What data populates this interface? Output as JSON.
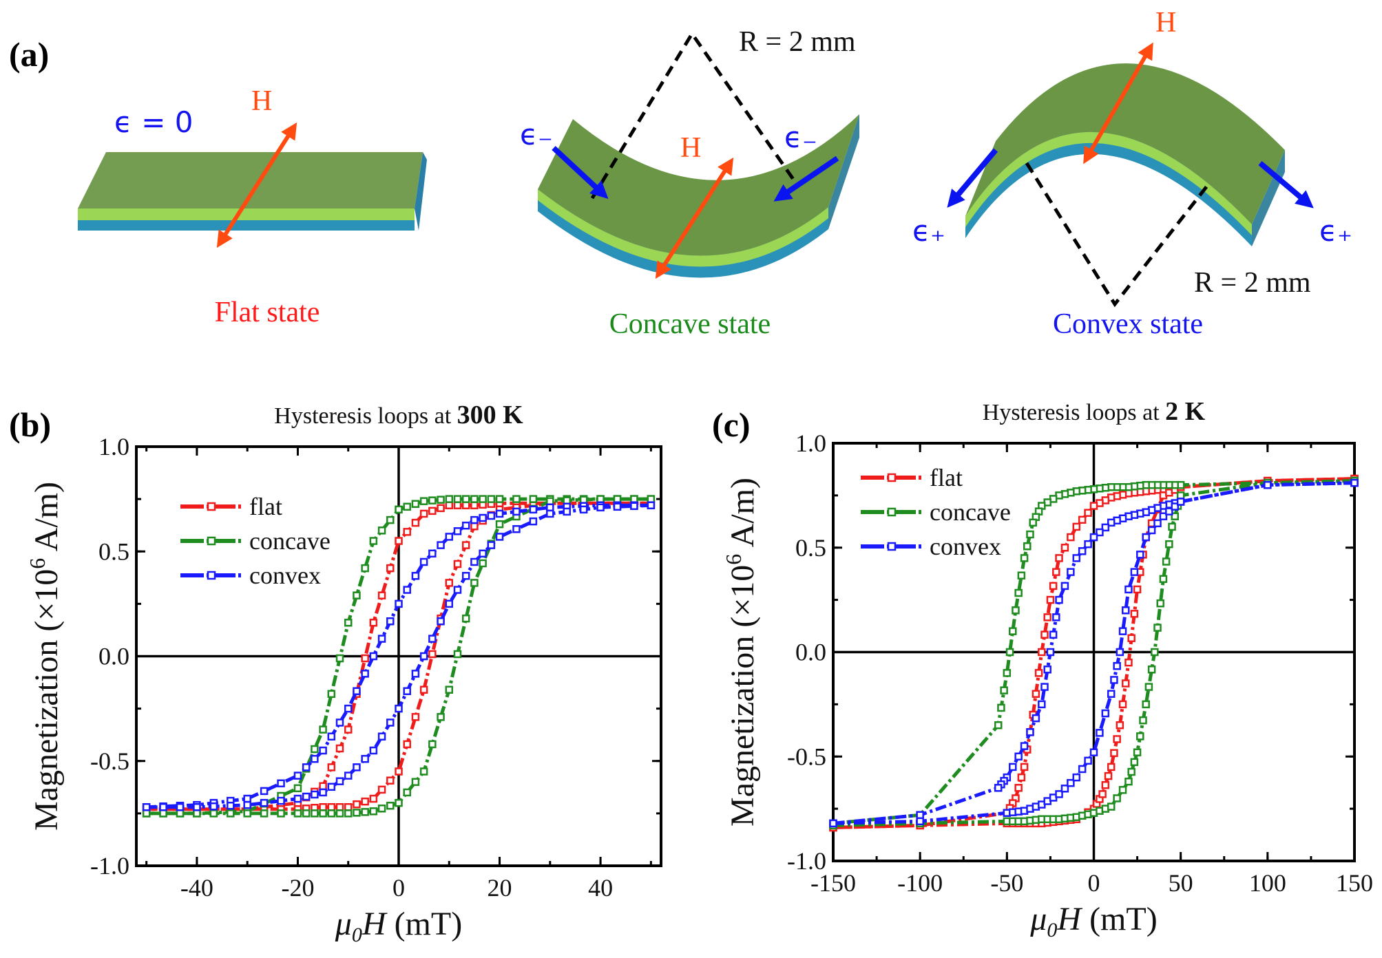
{
  "panel_a": {
    "label": "(a)",
    "colors": {
      "top_surface": "#6f9a48",
      "light_layer": "#9bd655",
      "blue_layer": "#2a92b8",
      "field_arrow": "#ff4a10",
      "strain_arrow": "#0a14f0"
    },
    "flat": {
      "strain_label": "ϵ = 0",
      "field_label": "H",
      "state_label": "Flat state",
      "state_color": "#ff1a1a"
    },
    "concave": {
      "strain_left": "ϵ₋",
      "strain_right": "ϵ₋",
      "field_label": "H",
      "radius_label": "R = 2 mm",
      "state_label": "Concave state",
      "state_color": "#1a8a1a"
    },
    "convex": {
      "strain_left": "ϵ₊",
      "strain_right": "ϵ₊",
      "field_label": "H",
      "radius_label": "R = 2 mm",
      "state_label": "Convex state",
      "state_color": "#1414f0"
    }
  },
  "chart_data": [
    {
      "panel_label": "(b)",
      "type": "line",
      "title_prefix": "Hysteresis loops at ",
      "title_bold": "300 K",
      "xlabel": {
        "mu": "μ",
        "sub": "0",
        "sym": "H",
        "unit": " (mT)"
      },
      "ylabel": {
        "main": "Magnetization (×10",
        "sup": "6",
        "unit": " A/m)"
      },
      "xlim": [
        -52,
        52
      ],
      "ylim": [
        -1.0,
        1.0
      ],
      "xticks": [
        {
          "v": -40,
          "label": "-40"
        },
        {
          "v": -20,
          "label": "-20"
        },
        {
          "v": 0,
          "label": "0"
        },
        {
          "v": 20,
          "label": "20"
        },
        {
          "v": 40,
          "label": "40"
        }
      ],
      "xminor_step": 10,
      "yticks": [
        {
          "v": -1.0,
          "label": "-1.0"
        },
        {
          "v": -0.5,
          "label": "-0.5"
        },
        {
          "v": 0.0,
          "label": "0.0"
        },
        {
          "v": 0.5,
          "label": "0.5"
        },
        {
          "v": 1.0,
          "label": "1.0"
        }
      ],
      "yminor_step": 0.25,
      "zero_lines": true,
      "legend_placement": "top-left",
      "series": [
        {
          "name": "flat",
          "color": "#f01c1c",
          "descending": [
            [
              50,
              0.73
            ],
            [
              40,
              0.73
            ],
            [
              30,
              0.73
            ],
            [
              20,
              0.73
            ],
            [
              15,
              0.72
            ],
            [
              10,
              0.72
            ],
            [
              5,
              0.68
            ],
            [
              0,
              0.55
            ],
            [
              -5,
              0.16
            ],
            [
              -10,
              -0.35
            ],
            [
              -15,
              -0.62
            ],
            [
              -20,
              -0.7
            ],
            [
              -30,
              -0.73
            ],
            [
              -40,
              -0.73
            ],
            [
              -50,
              -0.73
            ]
          ],
          "ascending": [
            [
              -50,
              -0.73
            ],
            [
              -40,
              -0.73
            ],
            [
              -30,
              -0.73
            ],
            [
              -20,
              -0.73
            ],
            [
              -15,
              -0.72
            ],
            [
              -10,
              -0.72
            ],
            [
              -5,
              -0.68
            ],
            [
              0,
              -0.55
            ],
            [
              5,
              -0.16
            ],
            [
              10,
              0.35
            ],
            [
              15,
              0.62
            ],
            [
              20,
              0.7
            ],
            [
              30,
              0.73
            ],
            [
              40,
              0.73
            ],
            [
              50,
              0.73
            ]
          ]
        },
        {
          "name": "concave",
          "color": "#1e8c1e",
          "descending": [
            [
              50,
              0.75
            ],
            [
              40,
              0.75
            ],
            [
              30,
              0.75
            ],
            [
              20,
              0.75
            ],
            [
              15,
              0.75
            ],
            [
              10,
              0.75
            ],
            [
              5,
              0.74
            ],
            [
              0,
              0.7
            ],
            [
              -5,
              0.55
            ],
            [
              -10,
              0.16
            ],
            [
              -15,
              -0.35
            ],
            [
              -20,
              -0.63
            ],
            [
              -30,
              -0.74
            ],
            [
              -40,
              -0.75
            ],
            [
              -50,
              -0.75
            ]
          ],
          "ascending": [
            [
              -50,
              -0.75
            ],
            [
              -40,
              -0.75
            ],
            [
              -30,
              -0.75
            ],
            [
              -20,
              -0.75
            ],
            [
              -15,
              -0.75
            ],
            [
              -10,
              -0.75
            ],
            [
              -5,
              -0.74
            ],
            [
              0,
              -0.7
            ],
            [
              5,
              -0.55
            ],
            [
              10,
              -0.16
            ],
            [
              15,
              0.35
            ],
            [
              20,
              0.63
            ],
            [
              30,
              0.74
            ],
            [
              40,
              0.75
            ],
            [
              50,
              0.75
            ]
          ]
        },
        {
          "name": "convex",
          "color": "#1a1aff",
          "descending": [
            [
              50,
              0.72
            ],
            [
              40,
              0.72
            ],
            [
              30,
              0.71
            ],
            [
              20,
              0.68
            ],
            [
              15,
              0.65
            ],
            [
              10,
              0.57
            ],
            [
              5,
              0.45
            ],
            [
              0,
              0.25
            ],
            [
              -5,
              0.0
            ],
            [
              -10,
              -0.25
            ],
            [
              -15,
              -0.45
            ],
            [
              -20,
              -0.57
            ],
            [
              -30,
              -0.68
            ],
            [
              -40,
              -0.71
            ],
            [
              -50,
              -0.72
            ]
          ],
          "ascending": [
            [
              -50,
              -0.72
            ],
            [
              -40,
              -0.72
            ],
            [
              -30,
              -0.71
            ],
            [
              -20,
              -0.68
            ],
            [
              -15,
              -0.65
            ],
            [
              -10,
              -0.57
            ],
            [
              -5,
              -0.45
            ],
            [
              0,
              -0.25
            ],
            [
              5,
              0.0
            ],
            [
              10,
              0.25
            ],
            [
              15,
              0.45
            ],
            [
              20,
              0.57
            ],
            [
              30,
              0.68
            ],
            [
              40,
              0.71
            ],
            [
              50,
              0.72
            ]
          ]
        }
      ]
    },
    {
      "panel_label": "(c)",
      "type": "line",
      "title_prefix": "Hysteresis loops at ",
      "title_bold": "2 K",
      "xlabel": {
        "mu": "μ",
        "sub": "0",
        "sym": "H",
        "unit": " (mT)"
      },
      "ylabel": {
        "main": "Magnetization (×10",
        "sup": "6",
        "unit": " A/m)"
      },
      "xlim": [
        -150,
        150
      ],
      "ylim": [
        -1.0,
        1.0
      ],
      "xticks": [
        {
          "v": -150,
          "label": "-150"
        },
        {
          "v": -100,
          "label": "-100"
        },
        {
          "v": -50,
          "label": "-50"
        },
        {
          "v": 0,
          "label": "0"
        },
        {
          "v": 50,
          "label": "50"
        },
        {
          "v": 100,
          "label": "100"
        },
        {
          "v": 150,
          "label": "150"
        }
      ],
      "xminor_step": 25,
      "yticks": [
        {
          "v": -1.0,
          "label": "-1.0"
        },
        {
          "v": -0.5,
          "label": "-0.5"
        },
        {
          "v": 0.0,
          "label": "0.0"
        },
        {
          "v": 0.5,
          "label": "0.5"
        },
        {
          "v": 1.0,
          "label": "1.0"
        }
      ],
      "yminor_step": 0.25,
      "zero_lines": true,
      "legend_placement": "top-left",
      "series": [
        {
          "name": "flat",
          "color": "#f01c1c",
          "descending": [
            [
              150,
              0.83
            ],
            [
              100,
              0.82
            ],
            [
              50,
              0.79
            ],
            [
              40,
              0.78
            ],
            [
              30,
              0.77
            ],
            [
              20,
              0.76
            ],
            [
              10,
              0.74
            ],
            [
              0,
              0.7
            ],
            [
              -10,
              0.6
            ],
            [
              -20,
              0.45
            ],
            [
              -25,
              0.25
            ],
            [
              -30,
              0.0
            ],
            [
              -35,
              -0.3
            ],
            [
              -40,
              -0.55
            ],
            [
              -45,
              -0.7
            ],
            [
              -50,
              -0.77
            ],
            [
              -100,
              -0.83
            ],
            [
              -150,
              -0.84
            ]
          ],
          "ascending": [
            [
              -150,
              -0.84
            ],
            [
              -100,
              -0.83
            ],
            [
              -50,
              -0.82
            ],
            [
              -40,
              -0.82
            ],
            [
              -30,
              -0.82
            ],
            [
              -20,
              -0.81
            ],
            [
              -10,
              -0.8
            ],
            [
              0,
              -0.75
            ],
            [
              5,
              -0.68
            ],
            [
              10,
              -0.55
            ],
            [
              15,
              -0.35
            ],
            [
              20,
              -0.05
            ],
            [
              25,
              0.3
            ],
            [
              30,
              0.55
            ],
            [
              40,
              0.75
            ],
            [
              50,
              0.79
            ],
            [
              100,
              0.82
            ],
            [
              150,
              0.83
            ]
          ]
        },
        {
          "name": "concave",
          "color": "#1e8c1e",
          "descending": [
            [
              150,
              0.82
            ],
            [
              100,
              0.81
            ],
            [
              50,
              0.8
            ],
            [
              40,
              0.8
            ],
            [
              30,
              0.8
            ],
            [
              20,
              0.79
            ],
            [
              10,
              0.79
            ],
            [
              0,
              0.78
            ],
            [
              -10,
              0.77
            ],
            [
              -20,
              0.75
            ],
            [
              -30,
              0.7
            ],
            [
              -35,
              0.62
            ],
            [
              -40,
              0.45
            ],
            [
              -45,
              0.2
            ],
            [
              -50,
              -0.1
            ],
            [
              -55,
              -0.35
            ],
            [
              -100,
              -0.78
            ],
            [
              -150,
              -0.82
            ]
          ],
          "ascending": [
            [
              -150,
              -0.83
            ],
            [
              -100,
              -0.82
            ],
            [
              -50,
              -0.81
            ],
            [
              -40,
              -0.81
            ],
            [
              -30,
              -0.8
            ],
            [
              -20,
              -0.8
            ],
            [
              -10,
              -0.79
            ],
            [
              0,
              -0.77
            ],
            [
              10,
              -0.74
            ],
            [
              20,
              -0.62
            ],
            [
              25,
              -0.48
            ],
            [
              30,
              -0.25
            ],
            [
              35,
              0.0
            ],
            [
              40,
              0.35
            ],
            [
              45,
              0.6
            ],
            [
              50,
              0.75
            ],
            [
              100,
              0.81
            ],
            [
              150,
              0.82
            ]
          ]
        },
        {
          "name": "convex",
          "color": "#1a1aff",
          "descending": [
            [
              150,
              0.81
            ],
            [
              100,
              0.8
            ],
            [
              50,
              0.72
            ],
            [
              40,
              0.7
            ],
            [
              30,
              0.67
            ],
            [
              20,
              0.65
            ],
            [
              10,
              0.62
            ],
            [
              0,
              0.55
            ],
            [
              -10,
              0.45
            ],
            [
              -20,
              0.25
            ],
            [
              -25,
              0.0
            ],
            [
              -30,
              -0.25
            ],
            [
              -40,
              -0.45
            ],
            [
              -50,
              -0.6
            ],
            [
              -55,
              -0.65
            ],
            [
              -100,
              -0.78
            ],
            [
              -150,
              -0.82
            ]
          ],
          "ascending": [
            [
              -150,
              -0.82
            ],
            [
              -100,
              -0.81
            ],
            [
              -50,
              -0.77
            ],
            [
              -40,
              -0.76
            ],
            [
              -30,
              -0.73
            ],
            [
              -20,
              -0.68
            ],
            [
              -10,
              -0.6
            ],
            [
              0,
              -0.48
            ],
            [
              10,
              -0.2
            ],
            [
              15,
              0.0
            ],
            [
              20,
              0.3
            ],
            [
              30,
              0.55
            ],
            [
              40,
              0.65
            ],
            [
              50,
              0.72
            ],
            [
              100,
              0.8
            ],
            [
              150,
              0.81
            ]
          ]
        }
      ]
    }
  ]
}
